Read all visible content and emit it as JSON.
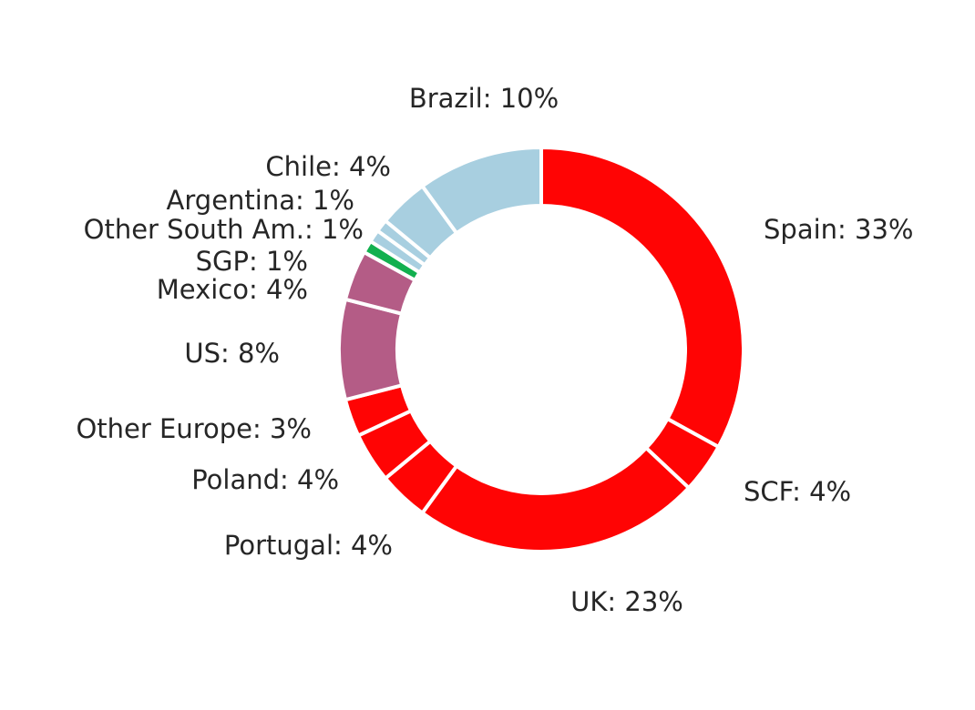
{
  "chart_data": {
    "type": "pie",
    "donut": true,
    "start_angle_deg": 0,
    "direction": "clockwise",
    "slices": [
      {
        "label": "Spain",
        "value": 33,
        "display": "Spain: 33%",
        "color": "#ff0404"
      },
      {
        "label": "SCF",
        "value": 4,
        "display": "SCF: 4%",
        "color": "#ff0404"
      },
      {
        "label": "UK",
        "value": 23,
        "display": "UK: 23%",
        "color": "#ff0404"
      },
      {
        "label": "Portugal",
        "value": 4,
        "display": "Portugal: 4%",
        "color": "#ff0404"
      },
      {
        "label": "Poland",
        "value": 4,
        "display": "Poland: 4%",
        "color": "#ff0404"
      },
      {
        "label": "Other Europe",
        "value": 3,
        "display": "Other Europe: 3%",
        "color": "#ff0404"
      },
      {
        "label": "US",
        "value": 8,
        "display": "US: 8%",
        "color": "#b45c86"
      },
      {
        "label": "Mexico",
        "value": 4,
        "display": "Mexico: 4%",
        "color": "#b45c86"
      },
      {
        "label": "SGP",
        "value": 1,
        "display": "SGP: 1%",
        "color": "#12b04f"
      },
      {
        "label": "Other South Am.",
        "value": 1,
        "display": "Other South Am.: 1%",
        "color": "#a8cfe0"
      },
      {
        "label": "Argentina",
        "value": 1,
        "display": "Argentina: 1%",
        "color": "#a8cfe0"
      },
      {
        "label": "Chile",
        "value": 4,
        "display": "Chile: 4%",
        "color": "#a8cfe0"
      },
      {
        "label": "Brazil",
        "value": 10,
        "display": "Brazil: 10%",
        "color": "#a8cfe0"
      }
    ]
  }
}
